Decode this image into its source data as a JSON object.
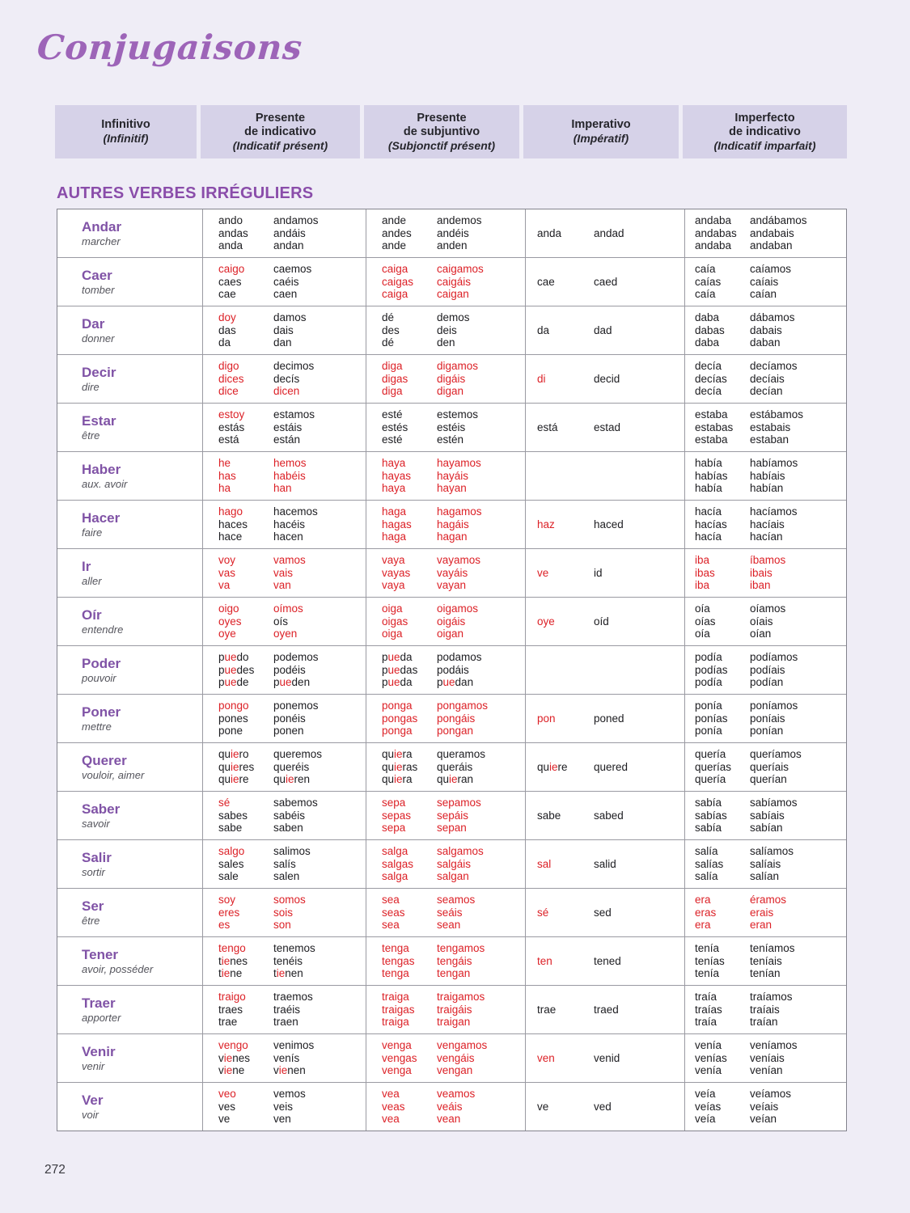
{
  "page": {
    "title": "Conjugaisons",
    "section_title": "AUTRES VERBES IRRÉGULIERS",
    "page_number": "272"
  },
  "theme": {
    "irregular_red": "#dc2127",
    "verb_purple": "#8053a6",
    "title_purple": "#9d64b8",
    "header_bg": "#d6d2e8",
    "page_bg": "#efedf6"
  },
  "table": {
    "headers": [
      {
        "lines": [
          "Infinitivo"
        ],
        "subtitle": "(Infinitif)"
      },
      {
        "lines": [
          "Presente",
          "de indicativo"
        ],
        "subtitle": "(Indicatif présent)"
      },
      {
        "lines": [
          "Presente",
          "de subjuntivo"
        ],
        "subtitle": "(Subjonctif présent)"
      },
      {
        "lines": [
          "Imperativo"
        ],
        "subtitle": "(Impératif)"
      },
      {
        "lines": [
          "Imperfecto",
          "de indicativo"
        ],
        "subtitle": "(Indicatif imparfait)"
      }
    ],
    "red_segment_delimiter": "*",
    "verbs": [
      {
        "name": "Andar",
        "translation": "marcher",
        "presente_indicativo": [
          "ando",
          "andas",
          "anda",
          "andamos",
          "andáis",
          "andan"
        ],
        "presente_subjuntivo": [
          "ande",
          "andes",
          "ande",
          "andemos",
          "andéis",
          "anden"
        ],
        "imperativo": [
          "anda",
          "andad"
        ],
        "imperfecto": [
          "andaba",
          "andabas",
          "andaba",
          "andábamos",
          "andabais",
          "andaban"
        ]
      },
      {
        "name": "Caer",
        "translation": "tomber",
        "presente_indicativo": [
          "*caigo*",
          "caes",
          "cae",
          "caemos",
          "caéis",
          "caen"
        ],
        "presente_subjuntivo": [
          "*caiga*",
          "*caigas*",
          "*caiga*",
          "*caigamos*",
          "*caigáis*",
          "*caigan*"
        ],
        "imperativo": [
          "cae",
          "caed"
        ],
        "imperfecto": [
          "caía",
          "caías",
          "caía",
          "caíamos",
          "caíais",
          "caían"
        ]
      },
      {
        "name": "Dar",
        "translation": "donner",
        "presente_indicativo": [
          "*doy*",
          "das",
          "da",
          "damos",
          "dais",
          "dan"
        ],
        "presente_subjuntivo": [
          "dé",
          "des",
          "dé",
          "demos",
          "deis",
          "den"
        ],
        "imperativo": [
          "da",
          "dad"
        ],
        "imperfecto": [
          "daba",
          "dabas",
          "daba",
          "dábamos",
          "dabais",
          "daban"
        ]
      },
      {
        "name": "Decir",
        "translation": "dire",
        "presente_indicativo": [
          "*digo*",
          "*dices*",
          "*dice*",
          "decimos",
          "decís",
          "*dicen*"
        ],
        "presente_subjuntivo": [
          "*diga*",
          "*digas*",
          "*diga*",
          "*digamos*",
          "*digáis*",
          "*digan*"
        ],
        "imperativo": [
          "*di*",
          "decid"
        ],
        "imperfecto": [
          "decía",
          "decías",
          "decía",
          "decíamos",
          "decíais",
          "decían"
        ]
      },
      {
        "name": "Estar",
        "translation": "être",
        "presente_indicativo": [
          "*estoy*",
          "estás",
          "está",
          "estamos",
          "estáis",
          "están"
        ],
        "presente_subjuntivo": [
          "esté",
          "estés",
          "esté",
          "estemos",
          "estéis",
          "estén"
        ],
        "imperativo": [
          "está",
          "estad"
        ],
        "imperfecto": [
          "estaba",
          "estabas",
          "estaba",
          "estábamos",
          "estabais",
          "estaban"
        ]
      },
      {
        "name": "Haber",
        "translation": "aux. avoir",
        "presente_indicativo": [
          "*he*",
          "*has*",
          "*ha*",
          "*hemos*",
          "*habéis*",
          "*han*"
        ],
        "presente_subjuntivo": [
          "*haya*",
          "*hayas*",
          "*haya*",
          "*hayamos*",
          "*hayáis*",
          "*hayan*"
        ],
        "imperativo": [
          "",
          ""
        ],
        "imperfecto": [
          "había",
          "habías",
          "había",
          "habíamos",
          "habíais",
          "habían"
        ]
      },
      {
        "name": "Hacer",
        "translation": "faire",
        "presente_indicativo": [
          "*hago*",
          "haces",
          "hace",
          "hacemos",
          "hacéis",
          "hacen"
        ],
        "presente_subjuntivo": [
          "*haga*",
          "*hagas*",
          "*haga*",
          "*hagamos*",
          "*hagáis*",
          "*hagan*"
        ],
        "imperativo": [
          "*haz*",
          "haced"
        ],
        "imperfecto": [
          "hacía",
          "hacías",
          "hacía",
          "hacíamos",
          "hacíais",
          "hacían"
        ]
      },
      {
        "name": "Ir",
        "translation": "aller",
        "presente_indicativo": [
          "*voy*",
          "*vas*",
          "*va*",
          "*vamos*",
          "*vais*",
          "*van*"
        ],
        "presente_subjuntivo": [
          "*vaya*",
          "*vayas*",
          "*vaya*",
          "*vayamos*",
          "*vayáis*",
          "*vayan*"
        ],
        "imperativo": [
          "*ve*",
          "id"
        ],
        "imperfecto": [
          "*iba*",
          "*ibas*",
          "*iba*",
          "*íbamos*",
          "*ibais*",
          "*iban*"
        ]
      },
      {
        "name": "Oír",
        "translation": "entendre",
        "presente_indicativo": [
          "*oigo*",
          "*oyes*",
          "*oye*",
          "*oímos*",
          "oís",
          "*oyen*"
        ],
        "presente_subjuntivo": [
          "*oiga*",
          "*oigas*",
          "*oiga*",
          "*oigamos*",
          "*oigáis*",
          "*oigan*"
        ],
        "imperativo": [
          "*oye*",
          "oíd"
        ],
        "imperfecto": [
          "oía",
          "oías",
          "oía",
          "oíamos",
          "oíais",
          "oían"
        ]
      },
      {
        "name": "Poder",
        "translation": "pouvoir",
        "presente_indicativo": [
          "p*ue*do",
          "p*ue*des",
          "p*ue*de",
          "podemos",
          "podéis",
          "p*ue*den"
        ],
        "presente_subjuntivo": [
          "p*ue*da",
          "p*ue*das",
          "p*ue*da",
          "podamos",
          "podáis",
          "p*ue*dan"
        ],
        "imperativo": [
          "",
          ""
        ],
        "imperfecto": [
          "podía",
          "podías",
          "podía",
          "podíamos",
          "podíais",
          "podían"
        ]
      },
      {
        "name": "Poner",
        "translation": "mettre",
        "presente_indicativo": [
          "*pongo*",
          "pones",
          "pone",
          "ponemos",
          "ponéis",
          "ponen"
        ],
        "presente_subjuntivo": [
          "*ponga*",
          "*pongas*",
          "*ponga*",
          "*pongamos*",
          "*pongáis*",
          "*pongan*"
        ],
        "imperativo": [
          "*pon*",
          "poned"
        ],
        "imperfecto": [
          "ponía",
          "ponías",
          "ponía",
          "poníamos",
          "poníais",
          "ponían"
        ]
      },
      {
        "name": "Querer",
        "translation": "vouloir, aimer",
        "presente_indicativo": [
          "qu*ie*ro",
          "qu*ie*res",
          "qu*ie*re",
          "queremos",
          "queréis",
          "qu*ie*ren"
        ],
        "presente_subjuntivo": [
          "qu*ie*ra",
          "qu*ie*ras",
          "qu*ie*ra",
          "queramos",
          "queráis",
          "qu*ie*ran"
        ],
        "imperativo": [
          "qu*ie*re",
          "quered"
        ],
        "imperfecto": [
          "quería",
          "querías",
          "quería",
          "queríamos",
          "queríais",
          "querían"
        ]
      },
      {
        "name": "Saber",
        "translation": "savoir",
        "presente_indicativo": [
          "*sé*",
          "sabes",
          "sabe",
          "sabemos",
          "sabéis",
          "saben"
        ],
        "presente_subjuntivo": [
          "*sepa*",
          "*sepas*",
          "*sepa*",
          "*sepamos*",
          "*sepáis*",
          "*sepan*"
        ],
        "imperativo": [
          "sabe",
          "sabed"
        ],
        "imperfecto": [
          "sabía",
          "sabías",
          "sabía",
          "sabíamos",
          "sabíais",
          "sabían"
        ]
      },
      {
        "name": "Salir",
        "translation": "sortir",
        "presente_indicativo": [
          "*salgo*",
          "sales",
          "sale",
          "salimos",
          "salís",
          "salen"
        ],
        "presente_subjuntivo": [
          "*salga*",
          "*salgas*",
          "*salga*",
          "*salgamos*",
          "*salgáis*",
          "*salgan*"
        ],
        "imperativo": [
          "*sal*",
          "salid"
        ],
        "imperfecto": [
          "salía",
          "salías",
          "salía",
          "salíamos",
          "salíais",
          "salían"
        ]
      },
      {
        "name": "Ser",
        "translation": "être",
        "presente_indicativo": [
          "*soy*",
          "*eres*",
          "*es*",
          "*somos*",
          "*sois*",
          "*son*"
        ],
        "presente_subjuntivo": [
          "*sea*",
          "*seas*",
          "*sea*",
          "*seamos*",
          "*seáis*",
          "*sean*"
        ],
        "imperativo": [
          "*sé*",
          "sed"
        ],
        "imperfecto": [
          "*era*",
          "*eras*",
          "*era*",
          "*éramos*",
          "*erais*",
          "*eran*"
        ]
      },
      {
        "name": "Tener",
        "translation": "avoir, posséder",
        "presente_indicativo": [
          "*tengo*",
          "t*ie*nes",
          "t*ie*ne",
          "tenemos",
          "tenéis",
          "t*ie*nen"
        ],
        "presente_subjuntivo": [
          "*tenga*",
          "*tengas*",
          "*tenga*",
          "*tengamos*",
          "*tengáis*",
          "*tengan*"
        ],
        "imperativo": [
          "*ten*",
          "tened"
        ],
        "imperfecto": [
          "tenía",
          "tenías",
          "tenía",
          "teníamos",
          "teníais",
          "tenían"
        ]
      },
      {
        "name": "Traer",
        "translation": "apporter",
        "presente_indicativo": [
          "*traigo*",
          "traes",
          "trae",
          "traemos",
          "traéis",
          "traen"
        ],
        "presente_subjuntivo": [
          "*traiga*",
          "*traigas*",
          "*traiga*",
          "*traigamos*",
          "*traigáis*",
          "*traigan*"
        ],
        "imperativo": [
          "trae",
          "traed"
        ],
        "imperfecto": [
          "traía",
          "traías",
          "traía",
          "traíamos",
          "traíais",
          "traían"
        ]
      },
      {
        "name": "Venir",
        "translation": "venir",
        "presente_indicativo": [
          "*vengo*",
          "v*ie*nes",
          "v*ie*ne",
          "venimos",
          "venís",
          "v*ie*nen"
        ],
        "presente_subjuntivo": [
          "*venga*",
          "*vengas*",
          "*venga*",
          "*vengamos*",
          "*vengáis*",
          "*vengan*"
        ],
        "imperativo": [
          "*ven*",
          "venid"
        ],
        "imperfecto": [
          "venía",
          "venías",
          "venía",
          "veníamos",
          "veníais",
          "venían"
        ]
      },
      {
        "name": "Ver",
        "translation": "voir",
        "presente_indicativo": [
          "*veo*",
          "ves",
          "ve",
          "vemos",
          "veis",
          "ven"
        ],
        "presente_subjuntivo": [
          "*vea*",
          "*veas*",
          "*vea*",
          "*veamos*",
          "*veáis*",
          "*vean*"
        ],
        "imperativo": [
          "ve",
          "ved"
        ],
        "imperfecto": [
          "veía",
          "veías",
          "veía",
          "veíamos",
          "veíais",
          "veían"
        ]
      }
    ]
  }
}
